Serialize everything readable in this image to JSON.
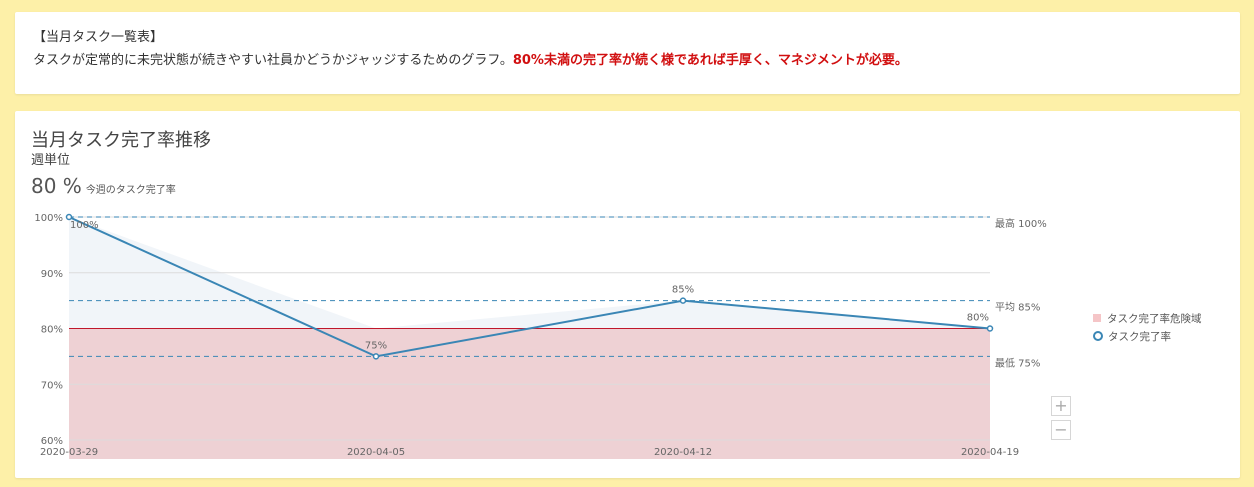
{
  "info": {
    "title": "【当月タスク一覧表】",
    "description": "タスクが定常的に未完状態が続きやすい社員かどうかジャッジするためのグラフ。",
    "warning": "80%未満の完了率が続く様であれば手厚く、マネジメントが必要。"
  },
  "chart_header": {
    "title": "当月タスク完了率推移",
    "subtitle": "週単位",
    "kpi_value": "80 %",
    "kpi_label": "今週のタスク完了率"
  },
  "legend": {
    "danger_zone": "タスク完了率危険域",
    "completion_rate": "タスク完了率"
  },
  "zoom": {
    "in": "+",
    "out": "−"
  },
  "colors": {
    "line": "#3a86b5",
    "danger_fill": "#eed1d4",
    "above_fill": "#f1f5f9",
    "threshold": "#c0162b",
    "warning_text": "#d10f10",
    "page_bg": "#fdf0a8"
  },
  "chart_data": {
    "type": "line",
    "x": [
      "2020-03-29",
      "2020-04-05",
      "2020-04-12",
      "2020-04-19"
    ],
    "series": [
      {
        "name": "タスク完了率",
        "values": [
          100,
          75,
          85,
          80
        ]
      }
    ],
    "data_labels": [
      "100%",
      "75%",
      "85%",
      "80%"
    ],
    "ylim": [
      60,
      100
    ],
    "y_ticks": [
      60,
      70,
      80,
      90,
      100
    ],
    "y_tick_labels": [
      "60%",
      "70%",
      "80%",
      "90%",
      "100%"
    ],
    "danger_zone": {
      "name": "タスク完了率危険域",
      "below": 80
    },
    "reference_lines": [
      {
        "value": 100,
        "label": "最高 100%"
      },
      {
        "value": 85,
        "label": "平均 85%"
      },
      {
        "value": 75,
        "label": "最低 75%"
      }
    ],
    "legend_position": "right"
  }
}
